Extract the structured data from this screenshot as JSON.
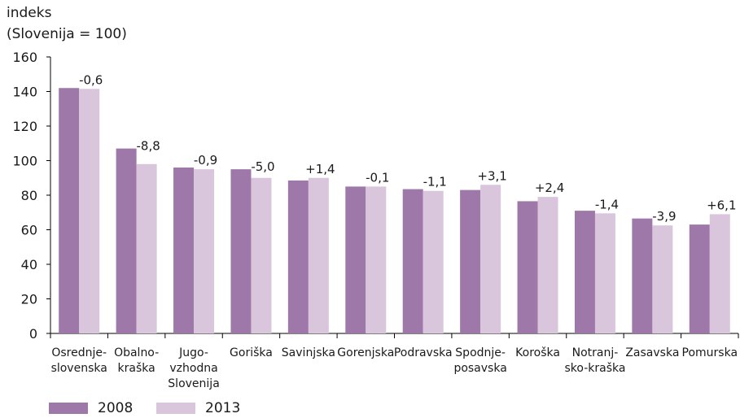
{
  "chart_data": {
    "type": "bar",
    "ylabel": [
      "indeks",
      "(Slovenija = 100)"
    ],
    "ylim": [
      0,
      160
    ],
    "yticks": [
      "0",
      "20",
      "40",
      "60",
      "80",
      "100",
      "120",
      "140",
      "160"
    ],
    "categories": [
      [
        "Osrednje-",
        "slovenska"
      ],
      [
        "Obalno-",
        "kraška"
      ],
      [
        "Jugo-",
        "vzhodna",
        "Slovenija"
      ],
      [
        "Goriška"
      ],
      [
        "Savinjska"
      ],
      [
        "Gorenjska"
      ],
      [
        "Podravska"
      ],
      [
        "Spodnje-",
        "posavska"
      ],
      [
        "Koroška"
      ],
      [
        "Notranj-",
        "sko-kraška"
      ],
      [
        "Zasavska"
      ],
      [
        "Pomurska"
      ]
    ],
    "series": [
      {
        "name": "2008",
        "color": "#9e78a8",
        "values": [
          142,
          107,
          96,
          95,
          88.5,
          85,
          83.5,
          83,
          76.5,
          71,
          66.5,
          63
        ]
      },
      {
        "name": "2013",
        "color": "#d9c6dd",
        "values": [
          141.5,
          98,
          95,
          90,
          90,
          85,
          82.5,
          86,
          79,
          69.5,
          62.5,
          69
        ]
      }
    ],
    "annotations": [
      "-0,6",
      "-8,8",
      "-0,9",
      "-5,0",
      "+1,4",
      "-0,1",
      "-1,1",
      "+3,1",
      "+2,4",
      "-1,4",
      "-3,9",
      "+6,1"
    ],
    "legend": {
      "position": "bottom-left"
    },
    "grid": false
  }
}
